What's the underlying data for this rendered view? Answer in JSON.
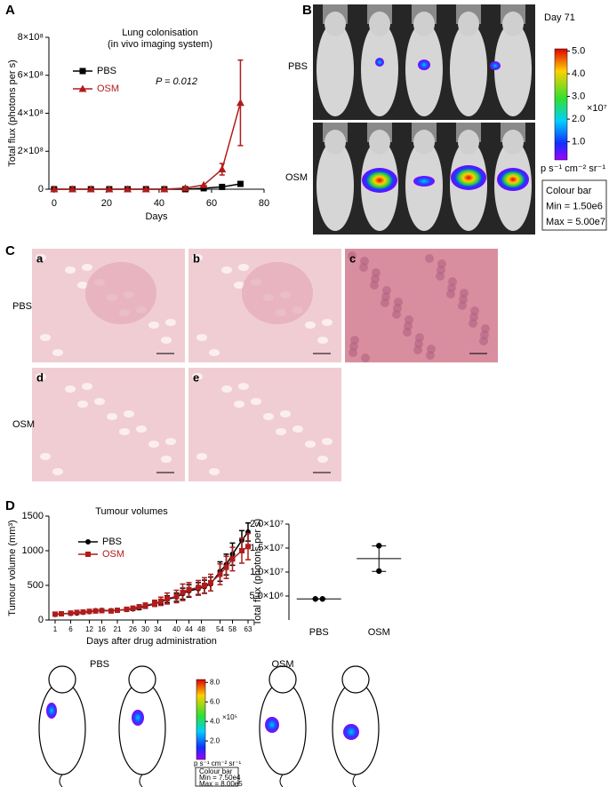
{
  "panel_labels": [
    "A",
    "B",
    "C",
    "D"
  ],
  "chart_data": [
    {
      "type": "line",
      "title": "Lung colonisation",
      "subtitle": "(in vivo imaging system)",
      "annotation": "P = 0.012",
      "xlabel": "Days",
      "ylabel": "Total flux (photons per s)",
      "x": [
        0,
        7,
        14,
        21,
        28,
        35,
        42,
        50,
        57,
        64,
        71
      ],
      "series": [
        {
          "name": "PBS",
          "color": "#000000",
          "marker": "square",
          "values": [
            0,
            0,
            0,
            0,
            0,
            0,
            0,
            0,
            5000000,
            12000000,
            28000000
          ]
        },
        {
          "name": "OSM",
          "color": "#b01c1c",
          "marker": "triangle",
          "values": [
            0,
            0,
            0,
            0,
            0,
            0,
            0,
            6000000,
            22000000,
            105000000,
            455000000
          ],
          "errors": [
            null,
            null,
            null,
            null,
            null,
            null,
            null,
            null,
            null,
            30000000,
            225000000
          ]
        }
      ],
      "xlim": [
        -2,
        80
      ],
      "xticks": [
        0,
        20,
        40,
        60,
        80
      ],
      "ylim": [
        0,
        800000000
      ],
      "yticks": [
        0,
        {
          "value": 200000000,
          "label": "2×10⁸"
        },
        {
          "value": 400000000,
          "label": "4×10⁸"
        },
        {
          "value": 600000000,
          "label": "6×10⁸"
        },
        {
          "value": 800000000,
          "label": "8×10⁸"
        }
      ]
    },
    {
      "type": "line",
      "title": "Tumour volumes",
      "xlabel": "Days after drug administration",
      "ylabel": "Tumour volume (mm³)",
      "x": [
        1,
        3,
        6,
        8,
        10,
        12,
        14,
        16,
        19,
        21,
        24,
        26,
        28,
        30,
        33,
        35,
        37,
        40,
        42,
        44,
        47,
        49,
        51,
        54,
        56,
        58,
        61,
        63
      ],
      "series": [
        {
          "name": "PBS",
          "color": "#000000",
          "marker": "circle",
          "values": [
            80,
            90,
            95,
            100,
            110,
            120,
            135,
            140,
            135,
            140,
            150,
            160,
            175,
            200,
            230,
            260,
            300,
            330,
            380,
            420,
            450,
            480,
            520,
            700,
            800,
            950,
            1150,
            1270
          ],
          "errors": [
            10,
            12,
            12,
            14,
            15,
            16,
            18,
            18,
            18,
            20,
            20,
            22,
            25,
            30,
            35,
            40,
            50,
            60,
            80,
            90,
            90,
            95,
            100,
            140,
            150,
            160,
            140,
            130
          ]
        },
        {
          "name": "OSM",
          "color": "#b01c1c",
          "marker": "square",
          "values": [
            85,
            90,
            100,
            110,
            115,
            125,
            130,
            135,
            130,
            140,
            155,
            170,
            190,
            210,
            240,
            270,
            310,
            340,
            400,
            440,
            470,
            500,
            540,
            660,
            760,
            880,
            1000,
            1060
          ],
          "errors": [
            10,
            12,
            14,
            15,
            15,
            18,
            18,
            20,
            20,
            22,
            25,
            28,
            30,
            35,
            45,
            60,
            80,
            90,
            120,
            100,
            100,
            110,
            120,
            150,
            160,
            170,
            180,
            190
          ]
        }
      ],
      "xlim": [
        -1,
        65
      ],
      "xticks": [
        1,
        6,
        12,
        16,
        21,
        26,
        30,
        34,
        40,
        44,
        48,
        54,
        58,
        63
      ],
      "ylim": [
        0,
        1500
      ],
      "yticks": [
        0,
        500,
        1000,
        1500
      ]
    },
    {
      "type": "dot",
      "ylabel": "Total flux (photons per s)",
      "categories": [
        "PBS",
        "OSM"
      ],
      "color": "#000000",
      "points": [
        [
          4400000,
          4400000
        ],
        [
          15500000,
          10200000
        ]
      ],
      "means": [
        4400000,
        12800000
      ],
      "errors": [
        0,
        2650000
      ],
      "ylim": [
        0,
        20000000
      ],
      "yticks": [
        {
          "value": 5000000,
          "label": "5.0×10⁶"
        },
        {
          "value": 10000000,
          "label": "1.0×10⁷"
        },
        {
          "value": 15000000,
          "label": "1.5×10⁷"
        },
        {
          "value": 20000000,
          "label": "2.0×10⁷"
        }
      ]
    }
  ],
  "imaging_b": {
    "title": "Day 71",
    "rows": [
      "PBS",
      "OSM"
    ],
    "colorbar": {
      "lim": [
        0.2,
        5.1
      ],
      "ticks": [
        {
          "value": 5,
          "label": "5.0"
        },
        {
          "value": 4,
          "label": "4.0"
        },
        {
          "value": 3,
          "label": "3.0"
        },
        {
          "value": 2,
          "label": "2.0"
        },
        {
          "value": 1,
          "label": "1.0"
        }
      ],
      "exponent": "×10⁷",
      "unit": "p s⁻¹ cm⁻² sr⁻¹",
      "box": [
        "Colour bar",
        "Min = 1.50e6",
        "Max = 5.00e7"
      ]
    }
  },
  "histology_c": {
    "rows": [
      "PBS",
      "OSM"
    ],
    "subpanels": [
      "a",
      "b",
      "c",
      "d",
      "e"
    ]
  },
  "imaging_d": {
    "groups": [
      "PBS",
      "OSM"
    ],
    "colorbar": {
      "lim": [
        0.1,
        8.3
      ],
      "ticks": [
        {
          "value": 8,
          "label": "8.0"
        },
        {
          "value": 6,
          "label": "6.0"
        },
        {
          "value": 4,
          "label": "4.0"
        },
        {
          "value": 2,
          "label": "2.0"
        }
      ],
      "exponent": "×10⁵",
      "unit": "p s⁻¹ cm⁻² sr⁻¹",
      "box": [
        "Colour bar",
        "Min = 7.50e4",
        "Max = 8.00e5"
      ]
    }
  }
}
